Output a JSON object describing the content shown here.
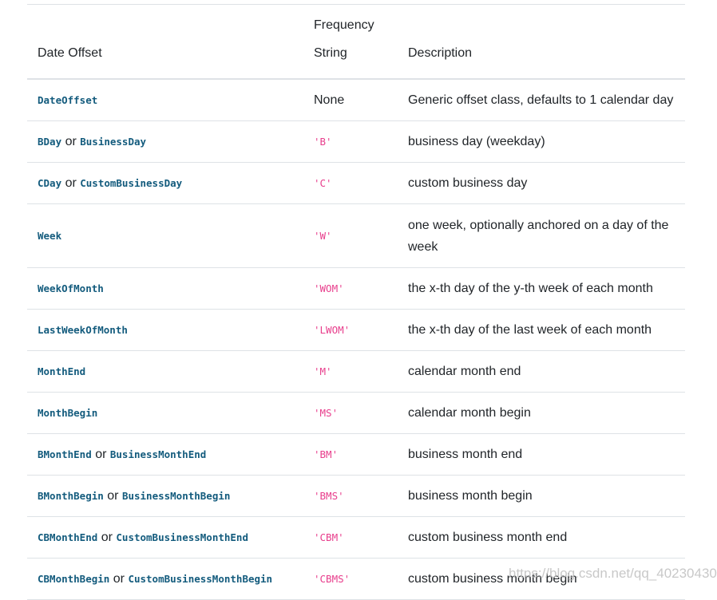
{
  "headers": [
    "Date Offset",
    "Frequency String",
    "Description"
  ],
  "rows": [
    {
      "offset": "DateOffset",
      "alt": "",
      "freq": "None",
      "freq_is_code": false,
      "desc": "Generic offset class, defaults to 1 calendar day"
    },
    {
      "offset": "BDay",
      "alt": "BusinessDay",
      "freq": "'B'",
      "freq_is_code": true,
      "desc": "business day (weekday)"
    },
    {
      "offset": "CDay",
      "alt": "CustomBusinessDay",
      "freq": "'C'",
      "freq_is_code": true,
      "desc": "custom business day"
    },
    {
      "offset": "Week",
      "alt": "",
      "freq": "'W'",
      "freq_is_code": true,
      "desc": "one week, optionally anchored on a day of the week"
    },
    {
      "offset": "WeekOfMonth",
      "alt": "",
      "freq": "'WOM'",
      "freq_is_code": true,
      "desc": "the x-th day of the y-th week of each month"
    },
    {
      "offset": "LastWeekOfMonth",
      "alt": "",
      "freq": "'LWOM'",
      "freq_is_code": true,
      "desc": "the x-th day of the last week of each month"
    },
    {
      "offset": "MonthEnd",
      "alt": "",
      "freq": "'M'",
      "freq_is_code": true,
      "desc": "calendar month end"
    },
    {
      "offset": "MonthBegin",
      "alt": "",
      "freq": "'MS'",
      "freq_is_code": true,
      "desc": "calendar month begin"
    },
    {
      "offset": "BMonthEnd",
      "alt": "BusinessMonthEnd",
      "freq": "'BM'",
      "freq_is_code": true,
      "desc": "business month end"
    },
    {
      "offset": "BMonthBegin",
      "alt": "BusinessMonthBegin",
      "freq": "'BMS'",
      "freq_is_code": true,
      "desc": "business month begin"
    },
    {
      "offset": "CBMonthEnd",
      "alt": "CustomBusinessMonthEnd",
      "freq": "'CBM'",
      "freq_is_code": true,
      "desc": "custom business month end"
    },
    {
      "offset": "CBMonthBegin",
      "alt": "CustomBusinessMonthBegin",
      "freq": "'CBMS'",
      "freq_is_code": true,
      "desc": "custom business month begin"
    }
  ],
  "or_word": "or",
  "watermark": "https://blog.csdn.net/qq_40230430",
  "colors": {
    "code": "#135b7d",
    "freq_code": "#e83e8c",
    "border": "#dee2e6"
  }
}
